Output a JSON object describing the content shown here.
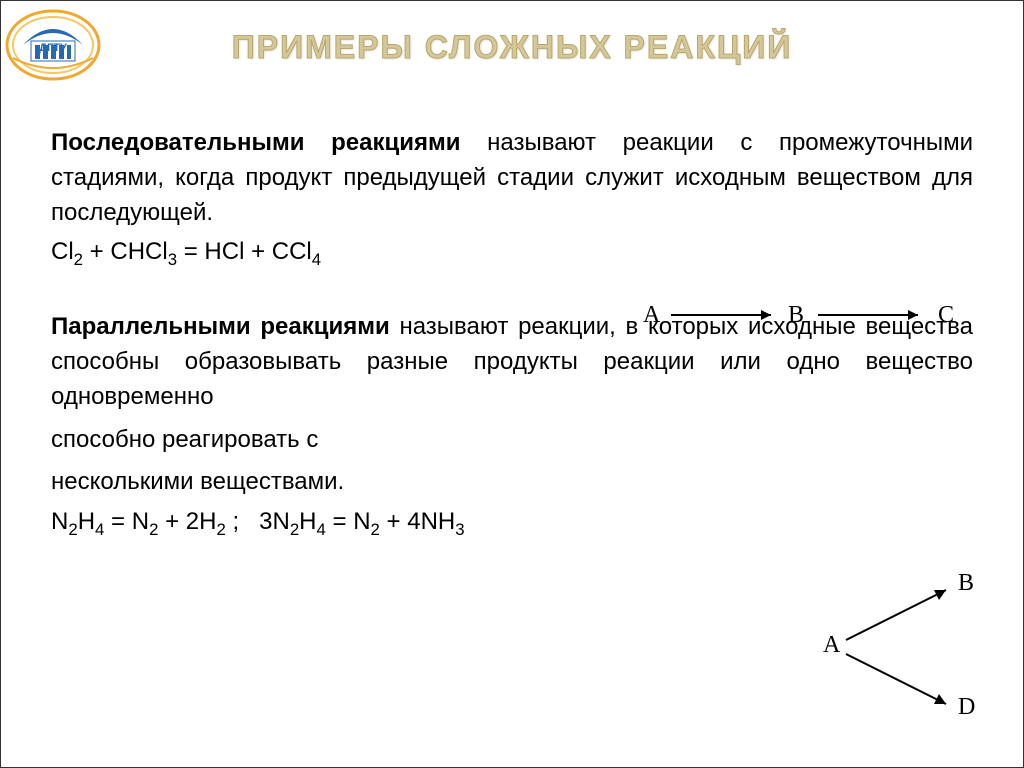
{
  "logo": {
    "text": "ДГТУ",
    "primary_color": "#f0a830",
    "secondary_color": "#2868b0"
  },
  "title": "ПРИМЕРЫ СЛОЖНЫХ РЕАКЦИЙ",
  "title_color": "#d4c89a",
  "section1": {
    "bold": "Последовательными реакциями",
    "rest": " называют реакции с промежуточными стадиями, когда продукт предыдущей стадии служит исходным веществом для последующей.",
    "equation_html": "Cl<sub>2</sub> + CHCl<sub>3</sub> = HCl + CCl<sub>4</sub>",
    "diagram": {
      "nodes": [
        "A",
        "B",
        "C"
      ]
    }
  },
  "section2": {
    "bold": "Параллельными реакциями",
    "rest": " называют реакции, в которых исходные вещества способны образовывать разные продукты реакции или одно вещество одновременно",
    "cont1": "способно реагировать с",
    "cont2": "несколькими веществами.",
    "equation_html": "N<sub>2</sub>H<sub>4</sub> = N<sub>2</sub> + 2H<sub>2</sub> ;   3N<sub>2</sub>H<sub>4</sub> = N<sub>2</sub> + 4NH<sub>3</sub>",
    "diagram": {
      "source": "A",
      "targets": [
        "B",
        "D"
      ]
    }
  },
  "fonts": {
    "body_size": 24,
    "title_size": 32
  },
  "colors": {
    "text": "#000000",
    "background": "#ffffff",
    "frame": "#333333"
  }
}
